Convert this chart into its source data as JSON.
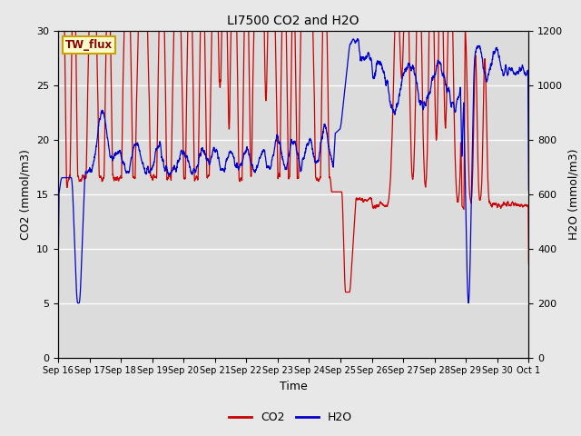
{
  "title": "LI7500 CO2 and H2O",
  "xlabel": "Time",
  "ylabel_left": "CO2 (mmol/m3)",
  "ylabel_right": "H2O (mmol/m3)",
  "site_label": "TW_flux",
  "ylim_left": [
    0,
    30
  ],
  "ylim_right": [
    0,
    1200
  ],
  "yticks_left": [
    0,
    5,
    10,
    15,
    20,
    25,
    30
  ],
  "yticks_right": [
    0,
    200,
    400,
    600,
    800,
    1000,
    1200
  ],
  "background_color": "#e8e8e8",
  "plot_bg_color": "#dcdcdc",
  "co2_color": "#cc0000",
  "h2o_color": "#0000cc",
  "legend_co2": "CO2",
  "legend_h2o": "H2O",
  "xtick_labels": [
    "Sep 16",
    "Sep 17",
    "Sep 18",
    "Sep 19",
    "Sep 20",
    "Sep 21",
    "Sep 22",
    "Sep 23",
    "Sep 24",
    "Sep 25",
    "Sep 26",
    "Sep 27",
    "Sep 28",
    "Sep 29",
    "Sep 30",
    "Oct 1"
  ],
  "xtick_positions": [
    16,
    17,
    18,
    19,
    20,
    21,
    22,
    23,
    24,
    25,
    26,
    27,
    28,
    29,
    30,
    31
  ],
  "xlim": [
    16,
    31
  ]
}
